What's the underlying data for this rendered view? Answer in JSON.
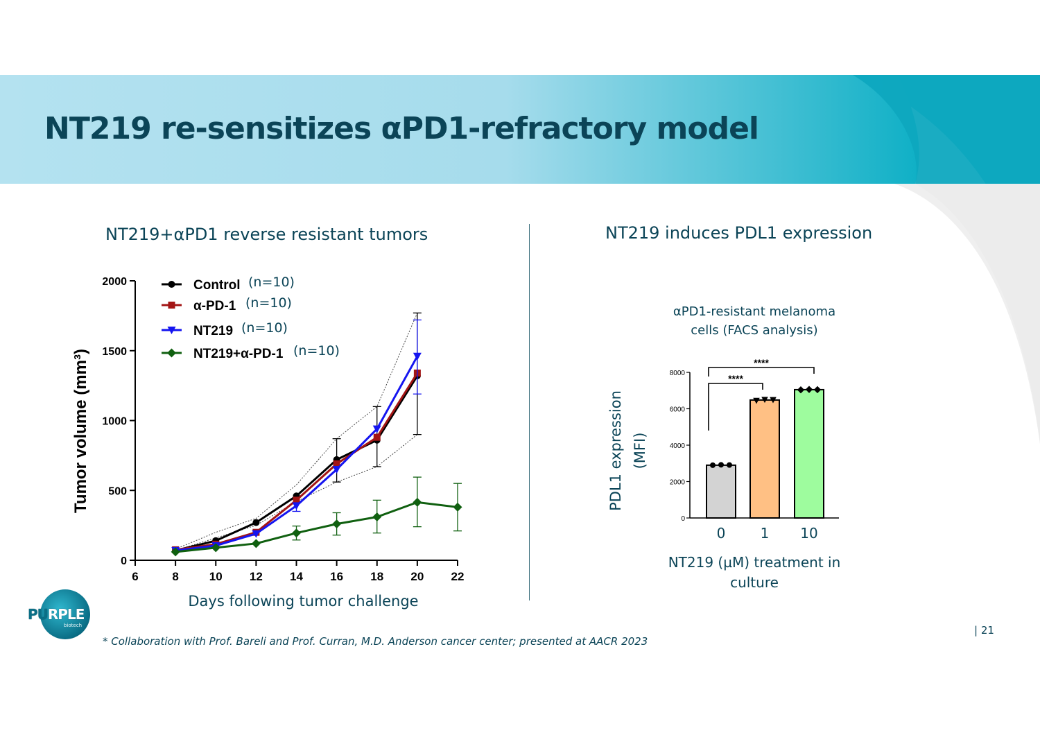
{
  "slide": {
    "title": "NT219 re-sensitizes αPD1-refractory model",
    "page_number": "| 21",
    "footnote": "* Collaboration with Prof. Bareli and Prof. Curran, M.D. Anderson cancer center; presented at AACR 2023",
    "logo_text_a": "PU",
    "logo_text_b": "RPLE",
    "logo_subtext": "biotech"
  },
  "colors": {
    "header_light": "#aee0ef",
    "header_dark": "#10b4c8",
    "title": "#0b4457",
    "control": "#000000",
    "apd1": "#a31515",
    "nt219": "#1515f0",
    "combo": "#106010",
    "bar0": "#d3d3d3",
    "bar1": "#ffc084",
    "bar10": "#9efc9e"
  },
  "chart_data": [
    {
      "type": "line",
      "panel_title": "NT219+αPD1 reverse resistant tumors",
      "xlabel": "Days following tumor challenge",
      "ylabel": "Tumor volume (mm³)",
      "xlim": [
        6,
        22
      ],
      "ylim": [
        0,
        2000
      ],
      "xticks": [
        6,
        8,
        10,
        12,
        14,
        16,
        18,
        20,
        22
      ],
      "yticks": [
        0,
        500,
        1000,
        1500,
        2000
      ],
      "legend_position": "top-left",
      "series": [
        {
          "name": "Control",
          "n_label": "(n=10)",
          "marker": "circle",
          "color": "#000000",
          "x": [
            8,
            10,
            12,
            14,
            16,
            18,
            20
          ],
          "y": [
            70,
            140,
            270,
            460,
            720,
            860,
            1320
          ],
          "err_lo": [
            null,
            null,
            null,
            null,
            560,
            670,
            900
          ],
          "err_hi": [
            null,
            null,
            null,
            null,
            870,
            1100,
            1770
          ]
        },
        {
          "name": "α-PD-1",
          "n_label": "(n=10)",
          "marker": "square",
          "color": "#a31515",
          "x": [
            8,
            10,
            12,
            14,
            16,
            18,
            20
          ],
          "y": [
            75,
            115,
            200,
            430,
            690,
            880,
            1340
          ]
        },
        {
          "name": "NT219",
          "n_label": "(n=10)",
          "marker": "triangle-down",
          "color": "#1515f0",
          "x": [
            8,
            10,
            12,
            14,
            16,
            18,
            20
          ],
          "y": [
            70,
            105,
            190,
            390,
            650,
            940,
            1460
          ],
          "err_lo": [
            null,
            null,
            null,
            350,
            null,
            null,
            1190
          ],
          "err_hi": [
            null,
            null,
            null,
            null,
            null,
            null,
            1720
          ]
        },
        {
          "name": "NT219+α-PD-1",
          "n_label": "(n=10)",
          "marker": "diamond",
          "color": "#106010",
          "x": [
            8,
            10,
            12,
            14,
            16,
            18,
            20,
            22
          ],
          "y": [
            60,
            90,
            120,
            195,
            260,
            310,
            415,
            380
          ],
          "err_lo": [
            null,
            null,
            null,
            145,
            180,
            195,
            240,
            210
          ],
          "err_hi": [
            null,
            null,
            null,
            245,
            340,
            430,
            595,
            550
          ]
        }
      ]
    },
    {
      "type": "bar",
      "panel_title": "NT219 induces PDL1 expression",
      "subtitle_line1": "αPD1-resistant melanoma",
      "subtitle_line2": "cells (FACS analysis)",
      "xlabel_line1": "NT219 (µM) treatment in",
      "xlabel_line2": "culture",
      "ylabel_line1": "PDL1 expression",
      "ylabel_line2": "(MFI)",
      "categories": [
        "0",
        "1",
        "10"
      ],
      "values": [
        2900,
        6480,
        7050
      ],
      "points": [
        [
          2900,
          2920,
          2910
        ],
        [
          6450,
          6500,
          6490
        ],
        [
          7040,
          7060,
          7050
        ]
      ],
      "point_markers": [
        "circle",
        "triangle-down",
        "diamond"
      ],
      "ylim": [
        0,
        8000
      ],
      "yticks": [
        0,
        2000,
        4000,
        6000,
        8000
      ],
      "significance": [
        {
          "from": 0,
          "to": 1,
          "label": "****"
        },
        {
          "from": 0,
          "to": 2,
          "label": "****"
        }
      ]
    }
  ]
}
